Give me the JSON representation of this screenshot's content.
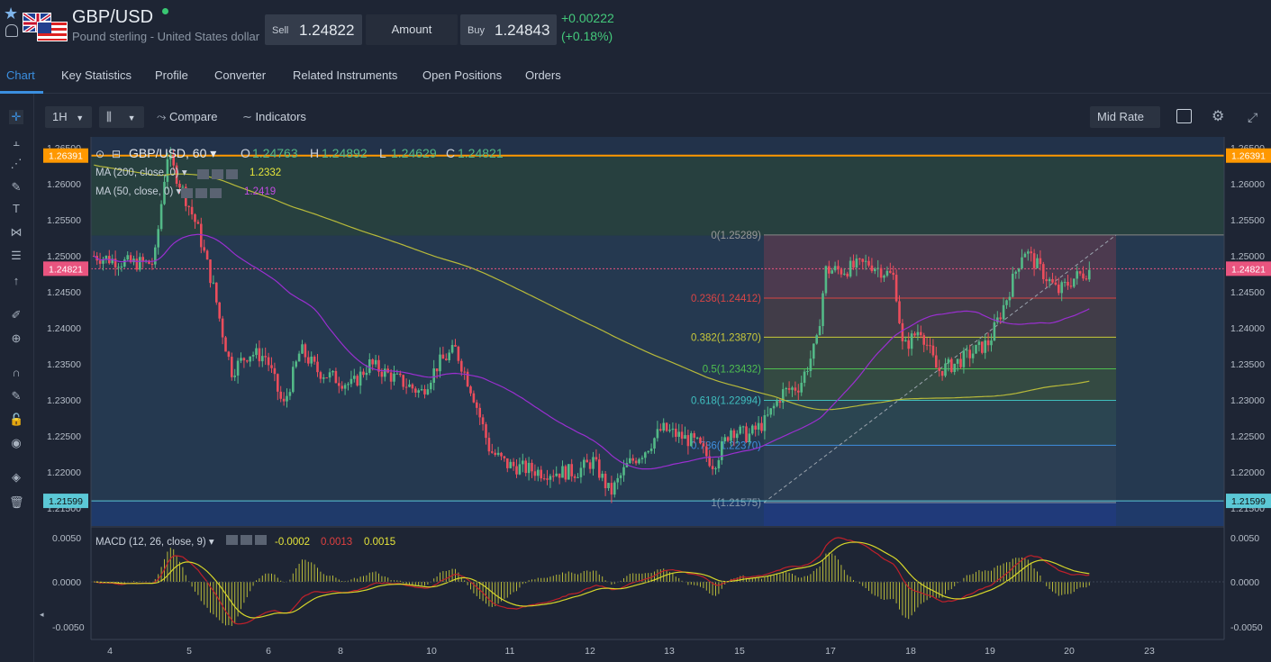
{
  "header": {
    "title": "GBP/USD",
    "subtitle": "Pound sterling - United States dollar",
    "sell_label": "Sell",
    "sell_value": "1.24822",
    "amount_label": "Amount",
    "buy_label": "Buy",
    "buy_value": "1.24843",
    "change_abs": "+0.00222",
    "change_pct": "(+0.18%)",
    "status_color": "#39c773"
  },
  "tabs": [
    "Chart",
    "Key Statistics",
    "Profile",
    "Converter",
    "Related Instruments",
    "Open Positions",
    "Orders"
  ],
  "toolbar": {
    "interval": "1H",
    "compare": "Compare",
    "indicators": "Indicators",
    "rate": "Mid Rate"
  },
  "left_tools": [
    "crosshair-icon",
    "horizontal-line-icon",
    "trend-tools-icon",
    "pen-icon",
    "text-icon",
    "pattern-icon",
    "fib-tool-icon",
    "arrow-up-icon",
    "ruler-icon",
    "zoom-icon",
    "magnet-icon",
    "lock-draw-icon",
    "lock-icon",
    "eye-icon",
    "layers-icon",
    "trash-icon"
  ],
  "legend": {
    "symbol": "GBP/USD, 60",
    "o_label": "O",
    "o": "1.24763",
    "h_label": "H",
    "h": "1.24892",
    "l_label": "L",
    "l": "1.24629",
    "c_label": "C",
    "c": "1.24821",
    "ma200_label": "MA (200, close, 0)",
    "ma200_val": "1.2332",
    "ma50_label": "MA (50, close, 0)",
    "ma50_val": "1.2419",
    "macd_label": "MACD (12, 26, close, 9)",
    "macd_v1": "-0.0002",
    "macd_v2": "0.0013",
    "macd_v3": "0.0015"
  },
  "colors": {
    "up": "#53b987",
    "down": "#eb4d5c",
    "ma200": "#b7b93a",
    "ma50": "#9a2fd0",
    "orange": "#ff9800",
    "cur": "#e9547f",
    "cyan": "#5bc8d6"
  },
  "chart_data": {
    "type": "candlestick",
    "price_axis": {
      "min": 1.2125,
      "max": 1.2665,
      "ticks": [
        "1.26500",
        "1.26000",
        "1.25500",
        "1.25000",
        "1.24500",
        "1.24000",
        "1.23500",
        "1.23000",
        "1.22500",
        "1.22000",
        "1.21500"
      ]
    },
    "x_ticks": [
      "4",
      "5",
      "6",
      "8",
      "10",
      "11",
      "12",
      "13",
      "15",
      "17",
      "18",
      "19",
      "20",
      "23"
    ],
    "h_lines": [
      {
        "value": 1.26391,
        "label": "1.26391",
        "color": "#ff9800"
      },
      {
        "value": 1.24821,
        "label": "1.24821",
        "color": "#e9547f"
      },
      {
        "value": 1.21599,
        "label": "1.21599",
        "color": "#5bc8d6"
      }
    ],
    "fib_levels": [
      {
        "ratio": "0",
        "value": "1.25289"
      },
      {
        "ratio": "0.236",
        "value": "1.24412"
      },
      {
        "ratio": "0.382",
        "value": "1.23870"
      },
      {
        "ratio": "0.5",
        "value": "1.23432"
      },
      {
        "ratio": "0.618",
        "value": "1.22994"
      },
      {
        "ratio": "0.786",
        "value": "1.22370"
      },
      {
        "ratio": "1",
        "value": "1.21575"
      }
    ],
    "close_path": [
      [
        0,
        1.25
      ],
      [
        40,
        1.249
      ],
      [
        70,
        1.249
      ],
      [
        85,
        1.264
      ],
      [
        100,
        1.26
      ],
      [
        120,
        1.254
      ],
      [
        140,
        1.245
      ],
      [
        148,
        1.24
      ],
      [
        160,
        1.234
      ],
      [
        180,
        1.2365
      ],
      [
        200,
        1.236
      ],
      [
        220,
        1.229
      ],
      [
        240,
        1.237
      ],
      [
        260,
        1.234
      ],
      [
        300,
        1.232
      ],
      [
        320,
        1.235
      ],
      [
        380,
        1.231
      ],
      [
        400,
        1.235
      ],
      [
        420,
        1.237
      ],
      [
        440,
        1.231
      ],
      [
        460,
        1.223
      ],
      [
        480,
        1.221
      ],
      [
        520,
        1.22
      ],
      [
        560,
        1.22
      ],
      [
        580,
        1.2215
      ],
      [
        600,
        1.217
      ],
      [
        620,
        1.221
      ],
      [
        640,
        1.223
      ],
      [
        660,
        1.226
      ],
      [
        700,
        1.224
      ],
      [
        720,
        1.221
      ],
      [
        740,
        1.226
      ],
      [
        760,
        1.225
      ],
      [
        780,
        1.227
      ],
      [
        800,
        1.231
      ],
      [
        820,
        1.232
      ],
      [
        840,
        1.238
      ],
      [
        850,
        1.248
      ],
      [
        870,
        1.248
      ],
      [
        900,
        1.249
      ],
      [
        930,
        1.247
      ],
      [
        940,
        1.237
      ],
      [
        960,
        1.24
      ],
      [
        980,
        1.234
      ],
      [
        1000,
        1.235
      ],
      [
        1040,
        1.238
      ],
      [
        1060,
        1.244
      ],
      [
        1080,
        1.251
      ],
      [
        1100,
        1.248
      ],
      [
        1120,
        1.245
      ],
      [
        1140,
        1.247
      ],
      [
        1160,
        1.2482
      ]
    ],
    "macd_axis": {
      "ticks": [
        "0.0050",
        "0.0000",
        "-0.0050"
      ]
    }
  }
}
